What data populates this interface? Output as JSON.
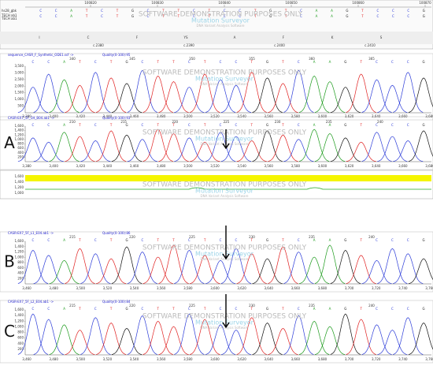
{
  "watermark": {
    "text": "SOFTWARE DEMONSTRATION PURPOSES ONLY",
    "product": "Mutation Surveyor",
    "tagline": "DNA Variant Analysis Software"
  },
  "reference": {
    "ruler": [
      "100820",
      "100830",
      "100840",
      "100850",
      "100860",
      "100870"
    ],
    "rows": [
      "hs28_gbk",
      "TECH ab1",
      "TECH ab1"
    ],
    "bases": [
      "C",
      "C",
      "A",
      "T",
      "C",
      "T",
      "G",
      "C",
      "T",
      "T",
      "C",
      "T",
      "C",
      "C",
      "T",
      "G",
      "T",
      "C",
      "A",
      "A",
      "G",
      "T",
      "C",
      "C",
      "C",
      "G"
    ],
    "aa": [
      "I",
      "C",
      "F",
      "YS",
      "A",
      "F",
      "K",
      "S"
    ],
    "cdna": [
      "c.2380",
      "c.2390",
      "c.2400",
      "c.2410"
    ]
  },
  "panels": [
    {
      "label": "",
      "header": "sequence_CASR_F_Synthetic_ODE1.scf ->",
      "quality": "Quality(0-100):95",
      "positions": [
        "340",
        "345",
        "350",
        "355",
        "360",
        "365"
      ],
      "bases": [
        "C",
        "C",
        "A",
        "T",
        "C",
        "T",
        "G",
        "C",
        "T",
        "T",
        "C",
        "T",
        "C",
        "C",
        "T",
        "G",
        "T",
        "C",
        "A",
        "A",
        "G",
        "T",
        "C",
        "C",
        "C",
        "G"
      ],
      "yticks": [
        "3,500",
        "3,000",
        "2,500",
        "2,000",
        "1,500",
        "1,000",
        "500"
      ],
      "xticks": [
        "3,380",
        "3,400",
        "3,420",
        "3,440",
        "3,460",
        "3,480",
        "3,500",
        "3,520",
        "3,540",
        "3,560",
        "3,580",
        "3,600",
        "3,620",
        "3,640",
        "3,660",
        "3,680"
      ],
      "arrow": false
    },
    {
      "label": "A",
      "header": "CASR-EX7_5F_1H_B04.ab1 ->",
      "quality": "Quality(0-100):93",
      "positions": [
        "210",
        "215",
        "220",
        "225",
        "230",
        "235",
        "240"
      ],
      "bases": [
        "C",
        "C",
        "A",
        "T",
        "C",
        "T",
        "G",
        "C",
        "T",
        "T",
        "C",
        "T",
        "C",
        "C",
        "T",
        "G",
        "T",
        "C",
        "A",
        "A",
        "G",
        "T",
        "C",
        "C",
        "C",
        "G"
      ],
      "yticks": [
        "1,600",
        "1,400",
        "1,200",
        "1,000",
        "800",
        "600",
        "400",
        "200"
      ],
      "xticks": [
        "3,380",
        "3,400",
        "3,420",
        "3,440",
        "3,460",
        "3,480",
        "3,500",
        "3,520",
        "3,540",
        "3,560",
        "3,580",
        "3,600",
        "3,620",
        "3,640",
        "3,660",
        "3,680"
      ],
      "arrow": true
    },
    {
      "label": "B",
      "header": "CASR-EX7_5F_L1_E04.ab1 ->",
      "quality": "Quality(0-100):86",
      "positions": [
        "215",
        "220",
        "225",
        "230",
        "235",
        "240"
      ],
      "bases": [
        "C",
        "C",
        "A",
        "T",
        "C",
        "T",
        "G",
        "C",
        "T",
        "T",
        "C",
        "T",
        "C",
        "C",
        "T",
        "G",
        "T",
        "C",
        "A",
        "A",
        "G",
        "T",
        "C",
        "C",
        "C",
        "G"
      ],
      "yticks": [
        "1,600",
        "1,400",
        "1,200",
        "1,000",
        "800",
        "600",
        "400",
        "200"
      ],
      "xticks": [
        "3,460",
        "3,480",
        "3,500",
        "3,520",
        "3,540",
        "3,560",
        "3,580",
        "3,600",
        "3,620",
        "3,640",
        "3,660",
        "3,680",
        "3,700",
        "3,720",
        "3,740",
        "3,760"
      ],
      "arrow": true
    },
    {
      "label": "C",
      "header": "CASR-EX7_5F_L2_E04.ab1 ->",
      "quality": "Quality(0-100):84",
      "positions": [
        "215",
        "220",
        "225",
        "230",
        "235",
        "240"
      ],
      "bases": [
        "C",
        "C",
        "A",
        "T",
        "C",
        "T",
        "G",
        "C",
        "T",
        "T",
        "C",
        "T",
        "C",
        "C",
        "T",
        "G",
        "T",
        "C",
        "A",
        "A",
        "G",
        "T",
        "C",
        "C",
        "C",
        "G"
      ],
      "yticks": [
        "1,600",
        "1,400",
        "1,200",
        "1,000",
        "800",
        "600",
        "400",
        "200"
      ],
      "xticks": [
        "3,460",
        "3,480",
        "3,500",
        "3,520",
        "3,540",
        "3,560",
        "3,580",
        "3,600",
        "3,620",
        "3,640",
        "3,660",
        "3,680",
        "3,700",
        "3,720",
        "3,740",
        "3,760"
      ],
      "arrow": true
    }
  ],
  "mutation": {
    "yticks": [
      "1,600",
      "1,400",
      "1,200",
      "1,000"
    ]
  }
}
